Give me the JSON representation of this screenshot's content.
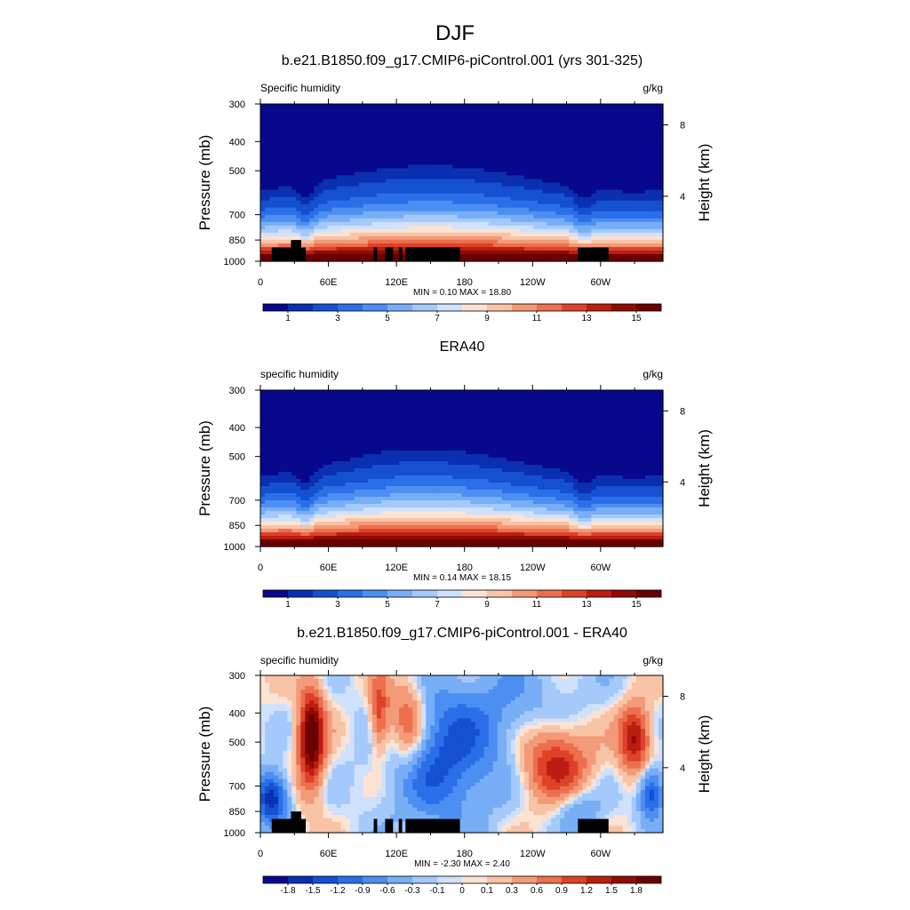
{
  "figure": {
    "title": "DJF"
  },
  "colors": {
    "abs_scale": [
      "#08088c",
      "#0a2fb0",
      "#1450d0",
      "#2a6ee8",
      "#4c8ef2",
      "#77aef6",
      "#a4c9fa",
      "#cfe1fb",
      "#fbe3d4",
      "#f8c3a6",
      "#f39a78",
      "#ec6f4e",
      "#dd4228",
      "#bb1e10",
      "#8e0b04",
      "#6a0000"
    ],
    "diff_scale": [
      "#08088c",
      "#0a2fb0",
      "#1450d0",
      "#2a6ee8",
      "#4c8ef2",
      "#77aef6",
      "#a4c9fa",
      "#cfe1fb",
      "#fbe3d4",
      "#f8c3a6",
      "#f39a78",
      "#ec6f4e",
      "#dd4228",
      "#bb1e10",
      "#8e0b04",
      "#6a0000"
    ],
    "topography": "#000000"
  },
  "chart_data": [
    {
      "type": "heatmap",
      "panel_title": "b.e21.B1850.f09_g17.CMIP6-piControl.001 (yrs 301-325)",
      "left_label": "Specific humidity",
      "right_label": "g/kg",
      "ylabel": "Pressure (mb)",
      "ylabel_right": "Height (km)",
      "x_ticks": [
        "0",
        "60E",
        "120E",
        "180",
        "120W",
        "60W"
      ],
      "x_tick_values": [
        0,
        60,
        120,
        180,
        240,
        300
      ],
      "xlim": [
        0,
        355
      ],
      "y_ticks": [
        "300",
        "400",
        "500",
        "700",
        "850",
        "1000"
      ],
      "y_tick_values": [
        300,
        400,
        500,
        700,
        850,
        1000
      ],
      "ylim": [
        300,
        1000
      ],
      "y_scale": "log",
      "right_ticks": [
        "8",
        "4"
      ],
      "right_tick_pressures": [
        352,
        608
      ],
      "minmax": "MIN =   0.10  MAX =  18.80",
      "min": 0.1,
      "max": 18.8,
      "colorbar_labels": [
        "1",
        "3",
        "5",
        "7",
        "9",
        "11",
        "13",
        "15"
      ],
      "levels": [
        0.5,
        1,
        2,
        3,
        4,
        5,
        6,
        7,
        8,
        9,
        10,
        11,
        12,
        13,
        14,
        15
      ],
      "field": "model",
      "topography": true
    },
    {
      "type": "heatmap",
      "panel_title": "ERA40",
      "left_label": "specific humidity",
      "right_label": "g/kg",
      "ylabel": "Pressure (mb)",
      "ylabel_right": "Height (km)",
      "x_ticks": [
        "0",
        "60E",
        "120E",
        "180",
        "120W",
        "60W"
      ],
      "x_tick_values": [
        0,
        60,
        120,
        180,
        240,
        300
      ],
      "xlim": [
        0,
        355
      ],
      "y_ticks": [
        "300",
        "400",
        "500",
        "700",
        "850",
        "1000"
      ],
      "y_tick_values": [
        300,
        400,
        500,
        700,
        850,
        1000
      ],
      "ylim": [
        300,
        1000
      ],
      "y_scale": "log",
      "right_ticks": [
        "8",
        "4"
      ],
      "right_tick_pressures": [
        352,
        608
      ],
      "minmax": "MIN =   0.14  MAX =  18.15",
      "min": 0.14,
      "max": 18.15,
      "colorbar_labels": [
        "1",
        "3",
        "5",
        "7",
        "9",
        "11",
        "13",
        "15"
      ],
      "levels": [
        0.5,
        1,
        2,
        3,
        4,
        5,
        6,
        7,
        8,
        9,
        10,
        11,
        12,
        13,
        14,
        15
      ],
      "field": "obs",
      "topography": false
    },
    {
      "type": "heatmap",
      "panel_title": "b.e21.B1850.f09_g17.CMIP6-piControl.001 - ERA40",
      "left_label": "specific humidity",
      "right_label": "g/kg",
      "ylabel": "Pressure (mb)",
      "ylabel_right": "Height (km)",
      "x_ticks": [
        "0",
        "60E",
        "120E",
        "180",
        "120W",
        "60W"
      ],
      "x_tick_values": [
        0,
        60,
        120,
        180,
        240,
        300
      ],
      "xlim": [
        0,
        355
      ],
      "y_ticks": [
        "300",
        "400",
        "500",
        "700",
        "850",
        "1000"
      ],
      "y_tick_values": [
        300,
        400,
        500,
        700,
        850,
        1000
      ],
      "ylim": [
        300,
        1000
      ],
      "y_scale": "log",
      "right_ticks": [
        "8",
        "4"
      ],
      "right_tick_pressures": [
        352,
        608
      ],
      "minmax": "MIN =  -2.30  MAX =   2.40",
      "min": -2.3,
      "max": 2.4,
      "colorbar_labels": [
        "-1.8",
        "-1.5",
        "-1.2",
        "-0.9",
        "-0.6",
        "-0.3",
        "-0.1",
        "0",
        "0.1",
        "0.3",
        "0.6",
        "0.9",
        "1.2",
        "1.5",
        "1.8"
      ],
      "levels": [
        -1.8,
        -1.5,
        -1.2,
        -0.9,
        -0.6,
        -0.3,
        -0.1,
        0,
        0.1,
        0.3,
        0.6,
        0.9,
        1.2,
        1.5,
        1.8
      ],
      "field": "diff",
      "topography": true
    }
  ]
}
